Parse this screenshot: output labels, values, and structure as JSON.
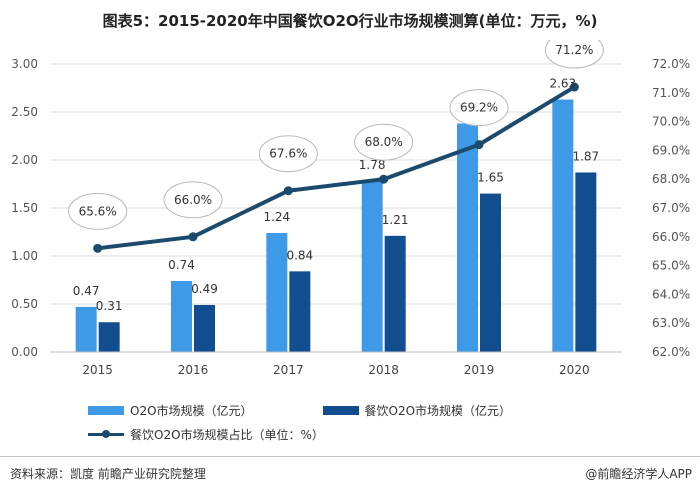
{
  "title": "图表5：2015-2020年中国餐饮O2O行业市场规模测算(单位：万元，%)",
  "colors": {
    "bar1": "#3e9ae6",
    "bar2": "#114d8f",
    "line": "#1c4a6d"
  },
  "chart_data": {
    "type": "bar",
    "categories": [
      "2015",
      "2016",
      "2017",
      "2018",
      "2019",
      "2020"
    ],
    "series": [
      {
        "name": "O2O市场规模（亿元）",
        "type": "bar",
        "axis": "left",
        "values": [
          0.47,
          0.74,
          1.24,
          1.78,
          2.38,
          2.63
        ]
      },
      {
        "name": "餐饮O2O市场规模（亿元）",
        "type": "bar",
        "axis": "left",
        "values": [
          0.31,
          0.49,
          0.84,
          1.21,
          1.65,
          1.87
        ]
      },
      {
        "name": "餐饮O2O市场规模占比（单位：%）",
        "type": "line",
        "axis": "right",
        "values": [
          65.6,
          66.0,
          67.6,
          68.0,
          69.2,
          71.2
        ]
      }
    ],
    "data_labels": {
      "bar1": [
        "0.47",
        "0.74",
        "1.24",
        "1.78",
        "2.38",
        "2.63"
      ],
      "bar2": [
        "0.31",
        "0.49",
        "0.84",
        "1.21",
        "1.65",
        "1.87"
      ],
      "line": [
        "65.6%",
        "66.0%",
        "67.6%",
        "68.0%",
        "69.2%",
        "71.2%"
      ]
    },
    "ylim_left": [
      0,
      3
    ],
    "ylim_right": [
      62,
      72
    ],
    "yticks_left": [
      "0.00",
      "0.50",
      "1.00",
      "1.50",
      "2.00",
      "2.50",
      "3.00"
    ],
    "yticks_right": [
      "62.0%",
      "63.0%",
      "64.0%",
      "65.0%",
      "66.0%",
      "67.0%",
      "68.0%",
      "69.0%",
      "70.0%",
      "71.0%",
      "72.0%"
    ],
    "grid": true,
    "legend_position": "bottom-left"
  },
  "legend": [
    "O2O市场规模（亿元）",
    "餐饮O2O市场规模（亿元）",
    "餐饮O2O市场规模占比（单位：%）"
  ],
  "footer": {
    "source": "资料来源：凯度 前瞻产业研究院整理",
    "brand": "@前瞻经济学人APP"
  }
}
